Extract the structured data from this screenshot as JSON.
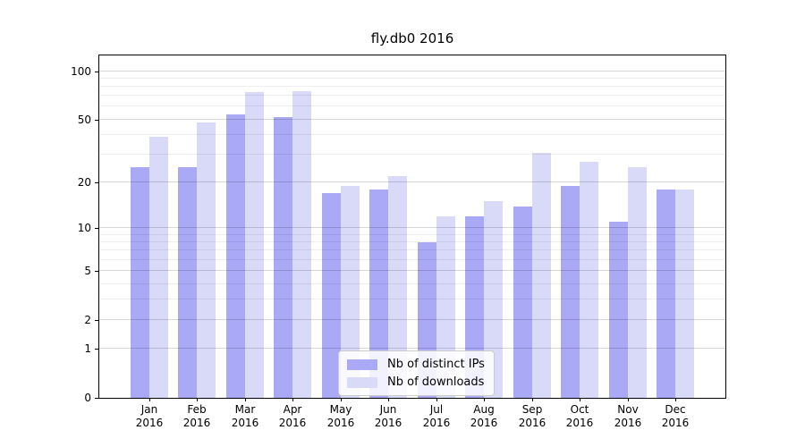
{
  "title": "fly.db0 2016",
  "colors": {
    "distinct_ips_bar": "#a9a9f5",
    "downloads_bar": "#d9d9f8",
    "axis": "#000000",
    "grid_major": "rgba(0,0,0,0.155)",
    "grid_minor": "rgba(0,0,0,0.065)",
    "legend_border": "#cccccc"
  },
  "legend": {
    "items": [
      {
        "label": "Nb of distinct IPs",
        "color": "#a9a9f5"
      },
      {
        "label": "Nb of downloads",
        "color": "#d9d9f8"
      }
    ]
  },
  "x_axis": {
    "months": [
      "Jan",
      "Feb",
      "Mar",
      "Apr",
      "May",
      "Jun",
      "Jul",
      "Aug",
      "Sep",
      "Oct",
      "Nov",
      "Dec"
    ],
    "year": "2016"
  },
  "y_axis": {
    "tick_labels": [
      "0",
      "1",
      "2",
      "5",
      "10",
      "20",
      "50",
      "100"
    ]
  },
  "chart_data": {
    "type": "bar",
    "title": "fly.db0 2016",
    "categories": [
      "Jan 2016",
      "Feb 2016",
      "Mar 2016",
      "Apr 2016",
      "May 2016",
      "Jun 2016",
      "Jul 2016",
      "Aug 2016",
      "Sep 2016",
      "Oct 2016",
      "Nov 2016",
      "Dec 2016"
    ],
    "series": [
      {
        "name": "Nb of distinct IPs",
        "color": "#a9a9f5",
        "values": [
          25,
          25,
          54,
          52,
          17,
          18,
          8,
          12,
          14,
          19,
          11,
          18
        ]
      },
      {
        "name": "Nb of downloads",
        "color": "#d9d9f8",
        "values": [
          39,
          48,
          74,
          75,
          19,
          22,
          12,
          15,
          31,
          27,
          25,
          18
        ]
      }
    ],
    "xlabel": "",
    "ylabel": "",
    "yscale": "log1p",
    "ylim": [
      0,
      125
    ],
    "yticks": [
      0,
      1,
      2,
      5,
      10,
      20,
      50,
      100
    ],
    "yticks_minor": [
      3,
      4,
      6,
      7,
      8,
      9,
      30,
      40,
      60,
      70,
      80,
      90
    ],
    "grid": true,
    "grid_above_bars": true,
    "legend_position": "lower center"
  }
}
